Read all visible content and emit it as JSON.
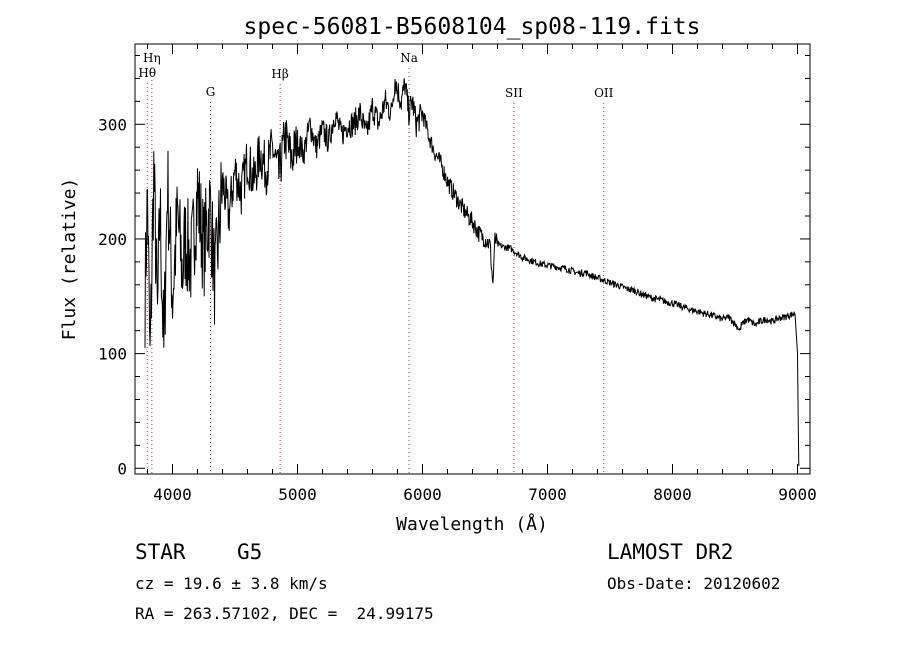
{
  "chart_data": {
    "type": "line",
    "title": "spec-56081-B5608104_sp08-119.fits",
    "xlabel": "Wavelength (Å)",
    "ylabel": "Flux (relative)",
    "xlim": [
      3700,
      9100
    ],
    "ylim": [
      -5,
      370
    ],
    "grid": false,
    "xticks": [
      4000,
      5000,
      6000,
      7000,
      8000,
      9000
    ],
    "xtick_labels": [
      "4000",
      "5000",
      "6000",
      "7000",
      "8000",
      "9000"
    ],
    "yticks": [
      0,
      100,
      200,
      300
    ],
    "ytick_labels": [
      "0",
      "100",
      "200",
      "300"
    ],
    "series": [
      {
        "color": "#000000",
        "x": [
          3780,
          3800,
          3820,
          3850,
          3880,
          3900,
          3930,
          3960,
          4000,
          4040,
          4080,
          4100,
          4150,
          4200,
          4250,
          4300,
          4340,
          4400,
          4450,
          4500,
          4550,
          4600,
          4650,
          4700,
          4750,
          4800,
          4850,
          4900,
          4950,
          5000,
          5050,
          5100,
          5150,
          5200,
          5250,
          5300,
          5350,
          5400,
          5450,
          5500,
          5550,
          5600,
          5650,
          5700,
          5750,
          5780,
          5800,
          5830,
          5860,
          5890,
          5920,
          5950,
          6000,
          6050,
          6100,
          6150,
          6200,
          6250,
          6300,
          6350,
          6400,
          6450,
          6500,
          6540,
          6563,
          6580,
          6600,
          6650,
          6700,
          6750,
          6800,
          6850,
          6900,
          6950,
          7000,
          7050,
          7100,
          7150,
          7200,
          7250,
          7300,
          7350,
          7400,
          7450,
          7500,
          7550,
          7600,
          7650,
          7700,
          7750,
          7800,
          7850,
          7900,
          7950,
          8000,
          8050,
          8100,
          8150,
          8200,
          8250,
          8300,
          8350,
          8400,
          8450,
          8500,
          8542,
          8550,
          8600,
          8662,
          8700,
          8750,
          8800,
          8850,
          8900,
          8950,
          8980,
          9000,
          9010
        ],
        "y": [
          150,
          240,
          90,
          260,
          130,
          230,
          100,
          250,
          150,
          220,
          170,
          200,
          180,
          240,
          190,
          230,
          160,
          250,
          220,
          260,
          240,
          270,
          250,
          275,
          260,
          280,
          255,
          290,
          270,
          285,
          275,
          300,
          280,
          295,
          285,
          310,
          290,
          300,
          300,
          310,
          290,
          315,
          300,
          320,
          310,
          340,
          330,
          320,
          335,
          310,
          320,
          300,
          310,
          290,
          275,
          265,
          250,
          240,
          230,
          222,
          215,
          205,
          200,
          195,
          160,
          200,
          195,
          193,
          192,
          188,
          184,
          182,
          180,
          178,
          177,
          176,
          175,
          174,
          172,
          170,
          171,
          168,
          166,
          164,
          162,
          160,
          158,
          156,
          155,
          152,
          150,
          148,
          147,
          145,
          144,
          142,
          140,
          138,
          137,
          135,
          134,
          132,
          130,
          132,
          126,
          120,
          125,
          130,
          125,
          128,
          130,
          128,
          131,
          132,
          134,
          135,
          100,
          2
        ]
      }
    ],
    "annotations": [
      {
        "label": "Hη",
        "x": 3835
      },
      {
        "label": "Hθ",
        "x": 3798
      },
      {
        "label": "G",
        "x": 4304
      },
      {
        "label": "Hβ",
        "x": 4861
      },
      {
        "label": "Na",
        "x": 5893
      },
      {
        "label": "SII",
        "x": 6731
      },
      {
        "label": "OII",
        "x": 7450
      }
    ]
  },
  "info": {
    "object_class": "STAR",
    "subclass": "G5",
    "survey": "LAMOST DR2",
    "cz": "cz = 19.6 ± 3.8 km/s",
    "obs_date": "Obs-Date: 20120602",
    "coords": "RA = 263.57102, DEC =  24.99175"
  }
}
